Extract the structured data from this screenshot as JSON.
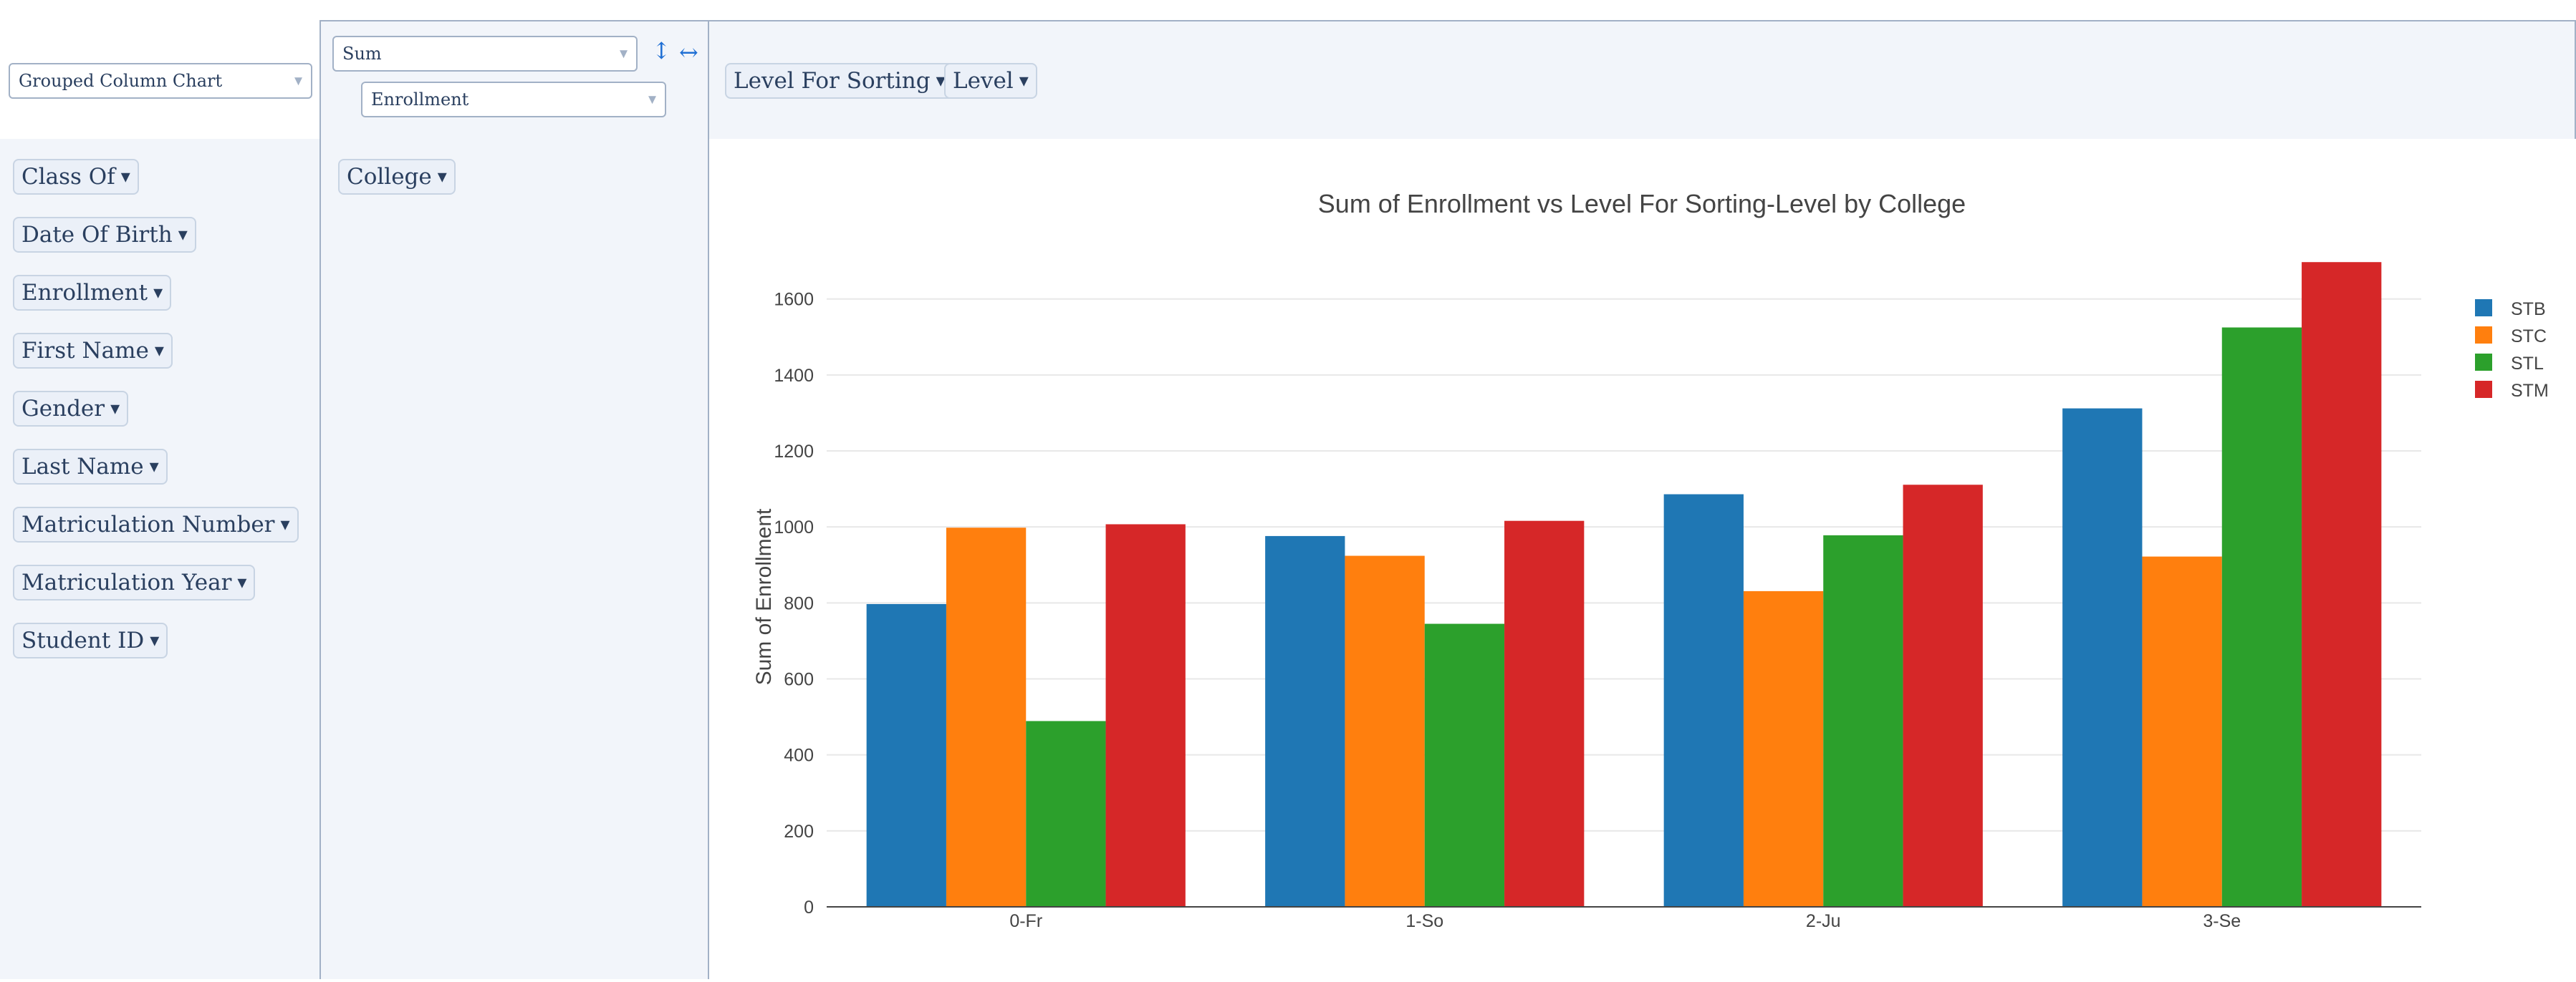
{
  "renderer": {
    "label": "Grouped Column Chart"
  },
  "aggregator": {
    "label": "Sum",
    "attribute": "Enrollment"
  },
  "toggles": {
    "row_order": "↕",
    "col_order": "↔"
  },
  "col_fields": [
    {
      "label": "Level For Sorting"
    },
    {
      "label": "Level"
    }
  ],
  "row_fields": [
    {
      "label": "College"
    }
  ],
  "unused_fields": [
    {
      "label": "Class Of"
    },
    {
      "label": "Date Of Birth"
    },
    {
      "label": "Enrollment"
    },
    {
      "label": "First Name"
    },
    {
      "label": "Gender"
    },
    {
      "label": "Last Name"
    },
    {
      "label": "Matriculation Number"
    },
    {
      "label": "Matriculation Year"
    },
    {
      "label": "Student ID"
    }
  ],
  "caret": "▾",
  "chart_data": {
    "type": "bar",
    "title": "Sum of Enrollment vs Level For Sorting-Level by College",
    "xlabel": "",
    "ylabel": "Sum of Enrollment",
    "categories": [
      "0-Fr",
      "1-So",
      "2-Ju",
      "3-Se"
    ],
    "ylim": [
      0,
      1720
    ],
    "yticks": [
      0,
      200,
      400,
      600,
      800,
      1000,
      1200,
      1400,
      1600
    ],
    "legend_position": "top-right",
    "series": [
      {
        "name": "STB",
        "color": "#1f77b4",
        "values": [
          797,
          976,
          1086,
          1312
        ]
      },
      {
        "name": "STC",
        "color": "#ff7f0e",
        "values": [
          998,
          924,
          831,
          922
        ]
      },
      {
        "name": "STL",
        "color": "#2ca02c",
        "values": [
          489,
          745,
          978,
          1525
        ]
      },
      {
        "name": "STM",
        "color": "#d62728",
        "values": [
          1007,
          1016,
          1111,
          1697
        ]
      }
    ]
  }
}
